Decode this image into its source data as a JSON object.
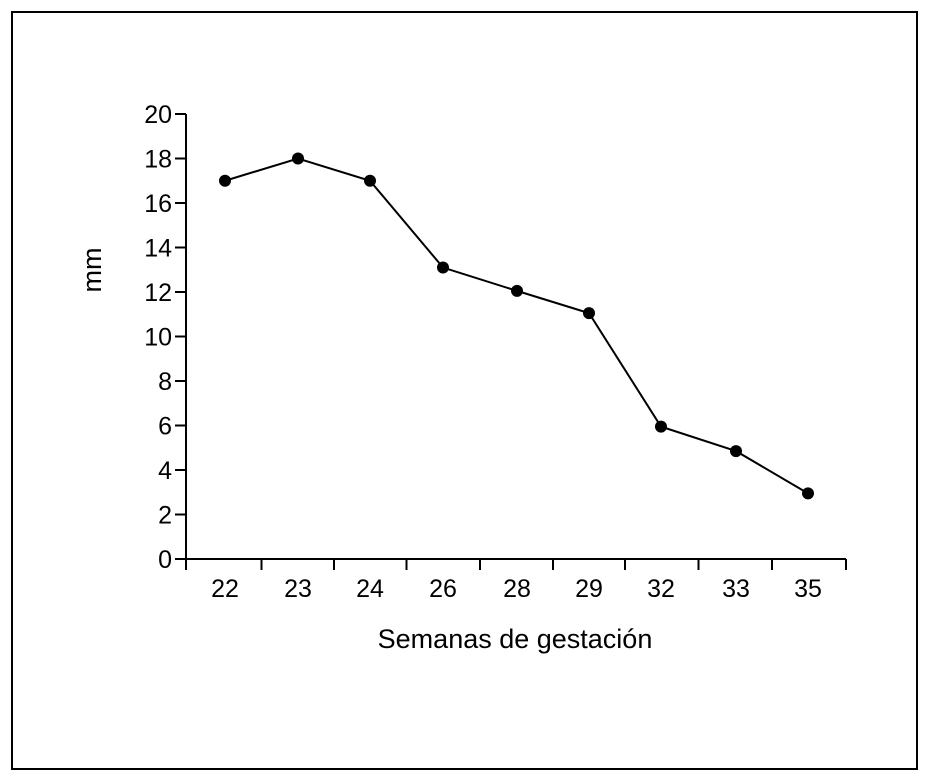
{
  "chart_data": {
    "type": "line",
    "categories": [
      "22",
      "23",
      "24",
      "26",
      "28",
      "29",
      "32",
      "33",
      "35"
    ],
    "series": [
      {
        "values": [
          17,
          18,
          17,
          13.1,
          12.05,
          11.05,
          5.95,
          4.85,
          2.95
        ]
      }
    ],
    "xlabel": "Semanas de gestación",
    "ylabel": "mm",
    "ylim": [
      0,
      20
    ],
    "yticks": [
      "0",
      "2",
      "4",
      "6",
      "8",
      "10",
      "12",
      "14",
      "16",
      "18",
      "20"
    ],
    "grid": false,
    "legend": "none",
    "colors": {
      "line": "#000000",
      "marker": "#000000"
    }
  }
}
